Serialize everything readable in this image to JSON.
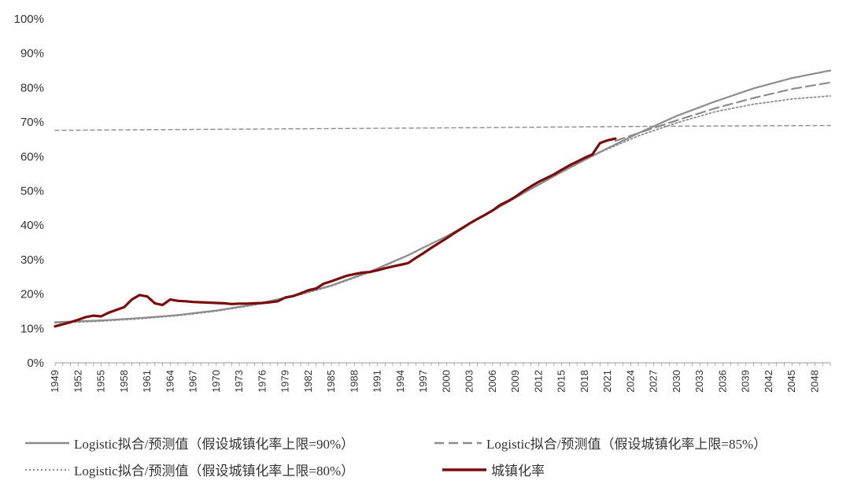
{
  "chart_data": {
    "type": "line",
    "x_start": 1949,
    "x_end": 2050,
    "x_tick_labels": [
      "1949",
      "1952",
      "1955",
      "1958",
      "1961",
      "1964",
      "1967",
      "1970",
      "1973",
      "1976",
      "1979",
      "1982",
      "1985",
      "1988",
      "1991",
      "1994",
      "1997",
      "2000",
      "2003",
      "2006",
      "2009",
      "2012",
      "2015",
      "2018",
      "2021",
      "2024",
      "2027",
      "2030",
      "2033",
      "2036",
      "2039",
      "2042",
      "2045",
      "2048"
    ],
    "y_tick_labels": [
      "0%",
      "10%",
      "20%",
      "30%",
      "40%",
      "50%",
      "60%",
      "70%",
      "80%",
      "90%",
      "100%"
    ],
    "ylim": [
      0,
      100
    ],
    "legend_position": "bottom",
    "colors": {
      "fit90": "#8c8c8c",
      "fit85": "#8c8c8c",
      "fit80": "#8c8c8c",
      "actual": "#7b0c0c",
      "ref": "#8c8c8c"
    },
    "series": [
      {
        "name": "Logistic拟合/预测值（假设城镇化率上限=90%）",
        "style": "solid",
        "points": [
          [
            1949,
            11.8
          ],
          [
            1955,
            12.3
          ],
          [
            1960,
            13.0
          ],
          [
            1965,
            13.9
          ],
          [
            1970,
            15.2
          ],
          [
            1975,
            17.0
          ],
          [
            1980,
            19.4
          ],
          [
            1985,
            22.5
          ],
          [
            1990,
            26.5
          ],
          [
            1995,
            31.3
          ],
          [
            2000,
            36.8
          ],
          [
            2005,
            42.9
          ],
          [
            2010,
            49.3
          ],
          [
            2015,
            55.5
          ],
          [
            2020,
            61.3
          ],
          [
            2025,
            66.8
          ],
          [
            2030,
            71.8
          ],
          [
            2035,
            76.0
          ],
          [
            2040,
            79.8
          ],
          [
            2045,
            82.8
          ],
          [
            2050,
            85.0
          ]
        ]
      },
      {
        "name": "Logistic拟合/预测值（假设城镇化率上限=85%）",
        "style": "dashed",
        "points": [
          [
            2022,
            64.5
          ],
          [
            2025,
            66.8
          ],
          [
            2030,
            70.5
          ],
          [
            2035,
            74.0
          ],
          [
            2040,
            77.0
          ],
          [
            2045,
            79.6
          ],
          [
            2050,
            81.5
          ]
        ]
      },
      {
        "name": "Logistic拟合/预测值（假设城镇化率上限=80%）",
        "style": "dotted",
        "points": [
          [
            1949,
            11.6
          ],
          [
            1955,
            12.1
          ],
          [
            1960,
            12.8
          ],
          [
            1965,
            13.7
          ],
          [
            1970,
            15.0
          ],
          [
            1975,
            16.8
          ],
          [
            1980,
            19.2
          ],
          [
            1985,
            22.3
          ],
          [
            1990,
            26.3
          ],
          [
            1995,
            31.2
          ],
          [
            2000,
            36.8
          ],
          [
            2005,
            43.0
          ],
          [
            2010,
            49.4
          ],
          [
            2015,
            55.6
          ],
          [
            2020,
            61.2
          ],
          [
            2025,
            66.0
          ],
          [
            2030,
            69.8
          ],
          [
            2035,
            73.0
          ],
          [
            2040,
            75.2
          ],
          [
            2045,
            76.7
          ],
          [
            2050,
            77.6
          ]
        ]
      },
      {
        "name": "城镇化率",
        "style": "solid-thick",
        "points": [
          [
            1949,
            10.6
          ],
          [
            1950,
            11.2
          ],
          [
            1951,
            11.8
          ],
          [
            1952,
            12.5
          ],
          [
            1953,
            13.3
          ],
          [
            1954,
            13.7
          ],
          [
            1955,
            13.5
          ],
          [
            1956,
            14.6
          ],
          [
            1957,
            15.4
          ],
          [
            1958,
            16.2
          ],
          [
            1959,
            18.4
          ],
          [
            1960,
            19.7
          ],
          [
            1961,
            19.3
          ],
          [
            1962,
            17.3
          ],
          [
            1963,
            16.8
          ],
          [
            1964,
            18.4
          ],
          [
            1965,
            18.0
          ],
          [
            1966,
            17.9
          ],
          [
            1967,
            17.7
          ],
          [
            1968,
            17.6
          ],
          [
            1969,
            17.5
          ],
          [
            1970,
            17.4
          ],
          [
            1971,
            17.3
          ],
          [
            1972,
            17.1
          ],
          [
            1973,
            17.2
          ],
          [
            1974,
            17.2
          ],
          [
            1975,
            17.3
          ],
          [
            1976,
            17.4
          ],
          [
            1977,
            17.6
          ],
          [
            1978,
            17.9
          ],
          [
            1979,
            19.0
          ],
          [
            1980,
            19.4
          ],
          [
            1981,
            20.2
          ],
          [
            1982,
            21.1
          ],
          [
            1983,
            21.6
          ],
          [
            1984,
            23.0
          ],
          [
            1985,
            23.7
          ],
          [
            1986,
            24.5
          ],
          [
            1987,
            25.3
          ],
          [
            1988,
            25.8
          ],
          [
            1989,
            26.2
          ],
          [
            1990,
            26.4
          ],
          [
            1991,
            26.9
          ],
          [
            1992,
            27.5
          ],
          [
            1993,
            28.0
          ],
          [
            1994,
            28.5
          ],
          [
            1995,
            29.0
          ],
          [
            1996,
            30.5
          ],
          [
            1997,
            31.9
          ],
          [
            1998,
            33.4
          ],
          [
            1999,
            34.8
          ],
          [
            2000,
            36.2
          ],
          [
            2001,
            37.7
          ],
          [
            2002,
            39.1
          ],
          [
            2003,
            40.5
          ],
          [
            2004,
            41.8
          ],
          [
            2005,
            43.0
          ],
          [
            2006,
            44.3
          ],
          [
            2007,
            45.9
          ],
          [
            2008,
            47.0
          ],
          [
            2009,
            48.3
          ],
          [
            2010,
            49.9
          ],
          [
            2011,
            51.3
          ],
          [
            2012,
            52.6
          ],
          [
            2013,
            53.7
          ],
          [
            2014,
            54.8
          ],
          [
            2015,
            56.1
          ],
          [
            2016,
            57.4
          ],
          [
            2017,
            58.5
          ],
          [
            2018,
            59.6
          ],
          [
            2019,
            60.6
          ],
          [
            2020,
            63.9
          ],
          [
            2021,
            64.7
          ],
          [
            2022,
            65.2
          ]
        ]
      },
      {
        "name": "",
        "style": "dashed-reference",
        "points": [
          [
            1949,
            67.6
          ],
          [
            1970,
            67.9
          ],
          [
            2000,
            68.3
          ],
          [
            2030,
            68.8
          ],
          [
            2050,
            69.0
          ]
        ]
      }
    ]
  }
}
